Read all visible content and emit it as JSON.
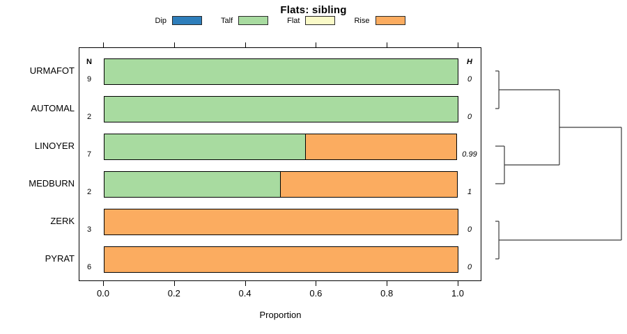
{
  "title": "Flats: sibling",
  "legend": {
    "items": [
      {
        "label": "Dip",
        "color": "#2E7EBB"
      },
      {
        "label": "Talf",
        "color": "#A8DBA0"
      },
      {
        "label": "Flat",
        "color": "#FAFAC8"
      },
      {
        "label": "Rise",
        "color": "#FBAC60"
      }
    ]
  },
  "columns": {
    "n_header": "N",
    "h_header": "H"
  },
  "axis": {
    "label": "Proportion",
    "ticks": [
      "0.0",
      "0.2",
      "0.4",
      "0.6",
      "0.8",
      "1.0"
    ]
  },
  "rows": [
    {
      "label": "URMAFOT",
      "n": "9",
      "h": "0",
      "segments": [
        {
          "name": "Talf",
          "value": 1.0
        }
      ]
    },
    {
      "label": "AUTOMAL",
      "n": "2",
      "h": "0",
      "segments": [
        {
          "name": "Talf",
          "value": 1.0
        }
      ]
    },
    {
      "label": "LINOYER",
      "n": "7",
      "h": "0.99",
      "segments": [
        {
          "name": "Talf",
          "value": 0.571
        },
        {
          "name": "Rise",
          "value": 0.429
        }
      ]
    },
    {
      "label": "MEDBURN",
      "n": "2",
      "h": "1",
      "segments": [
        {
          "name": "Talf",
          "value": 0.5
        },
        {
          "name": "Rise",
          "value": 0.5
        }
      ]
    },
    {
      "label": "ZERK",
      "n": "3",
      "h": "0",
      "segments": [
        {
          "name": "Rise",
          "value": 1.0
        }
      ]
    },
    {
      "label": "PYRAT",
      "n": "6",
      "h": "0",
      "segments": [
        {
          "name": "Rise",
          "value": 1.0
        }
      ]
    }
  ],
  "chart_data": {
    "type": "bar",
    "orientation": "horizontal",
    "stacked": true,
    "title": "Flats: sibling",
    "xlabel": "Proportion",
    "xlim": [
      0,
      1
    ],
    "xticks": [
      0.0,
      0.2,
      0.4,
      0.6,
      0.8,
      1.0
    ],
    "grid": false,
    "legend_position": "top",
    "categories": [
      "URMAFOT",
      "AUTOMAL",
      "LINOYER",
      "MEDBURN",
      "ZERK",
      "PYRAT"
    ],
    "series": [
      {
        "name": "Dip",
        "color": "#2E7EBB",
        "values": [
          0,
          0,
          0,
          0,
          0,
          0
        ]
      },
      {
        "name": "Talf",
        "color": "#A8DBA0",
        "values": [
          1,
          1,
          0.571,
          0.5,
          0,
          0
        ]
      },
      {
        "name": "Flat",
        "color": "#FAFAC8",
        "values": [
          0,
          0,
          0,
          0,
          0,
          0
        ]
      },
      {
        "name": "Rise",
        "color": "#FBAC60",
        "values": [
          0,
          0,
          0.429,
          0.5,
          1,
          1
        ]
      }
    ],
    "n_values": [
      9,
      2,
      7,
      2,
      3,
      6
    ],
    "h_values": [
      0,
      0,
      0.99,
      1,
      0,
      0
    ],
    "dendrogram": {
      "position": "right",
      "merges": [
        {
          "pair": [
            0,
            1
          ],
          "height": 0.028
        },
        {
          "pair": [
            2,
            3
          ],
          "height": 0.072
        },
        {
          "pair": [
            "m0",
            "m1"
          ],
          "height": 0.508
        },
        {
          "pair": [
            4,
            5
          ],
          "height": 0.028
        },
        {
          "pair": [
            "m2",
            "m3"
          ],
          "height": 1.0
        }
      ]
    }
  }
}
